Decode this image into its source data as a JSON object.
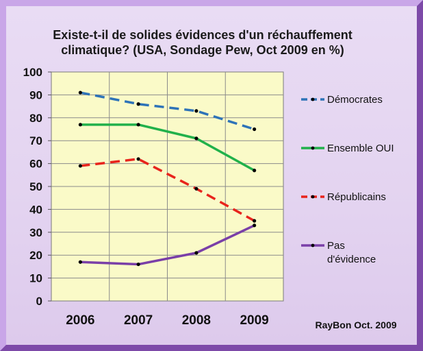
{
  "chart_data": {
    "type": "line",
    "title": [
      "Existe-t-il de solides évidences d'un réchauffement",
      "climatique? (USA, Sondage Pew, Oct 2009 en %)"
    ],
    "categories": [
      "2006",
      "2007",
      "2008",
      "2009"
    ],
    "ylim": [
      0,
      100
    ],
    "yticks": [
      "0",
      "10",
      "20",
      "30",
      "40",
      "50",
      "60",
      "70",
      "80",
      "90",
      "100"
    ],
    "grid": true,
    "legend_position": "right",
    "series": [
      {
        "name": "Démocrates",
        "values": [
          91,
          86,
          83,
          75
        ],
        "color": "#2e73b8",
        "style": "dashed"
      },
      {
        "name": "Ensemble OUI",
        "values": [
          77,
          77,
          71,
          57
        ],
        "color": "#21b14b",
        "style": "solid"
      },
      {
        "name": "Républicains",
        "values": [
          59,
          62,
          49,
          35
        ],
        "color": "#e8241c",
        "style": "dashed"
      },
      {
        "name": "Pas d'évidence",
        "name_lines": [
          "Pas",
          "d'évidence"
        ],
        "values": [
          17,
          16,
          21,
          33
        ],
        "color": "#7a3fa8",
        "style": "solid"
      }
    ],
    "plot_background": "#fafac8",
    "marker_color": "#000000"
  },
  "credit": "RayBon Oct. 2009"
}
